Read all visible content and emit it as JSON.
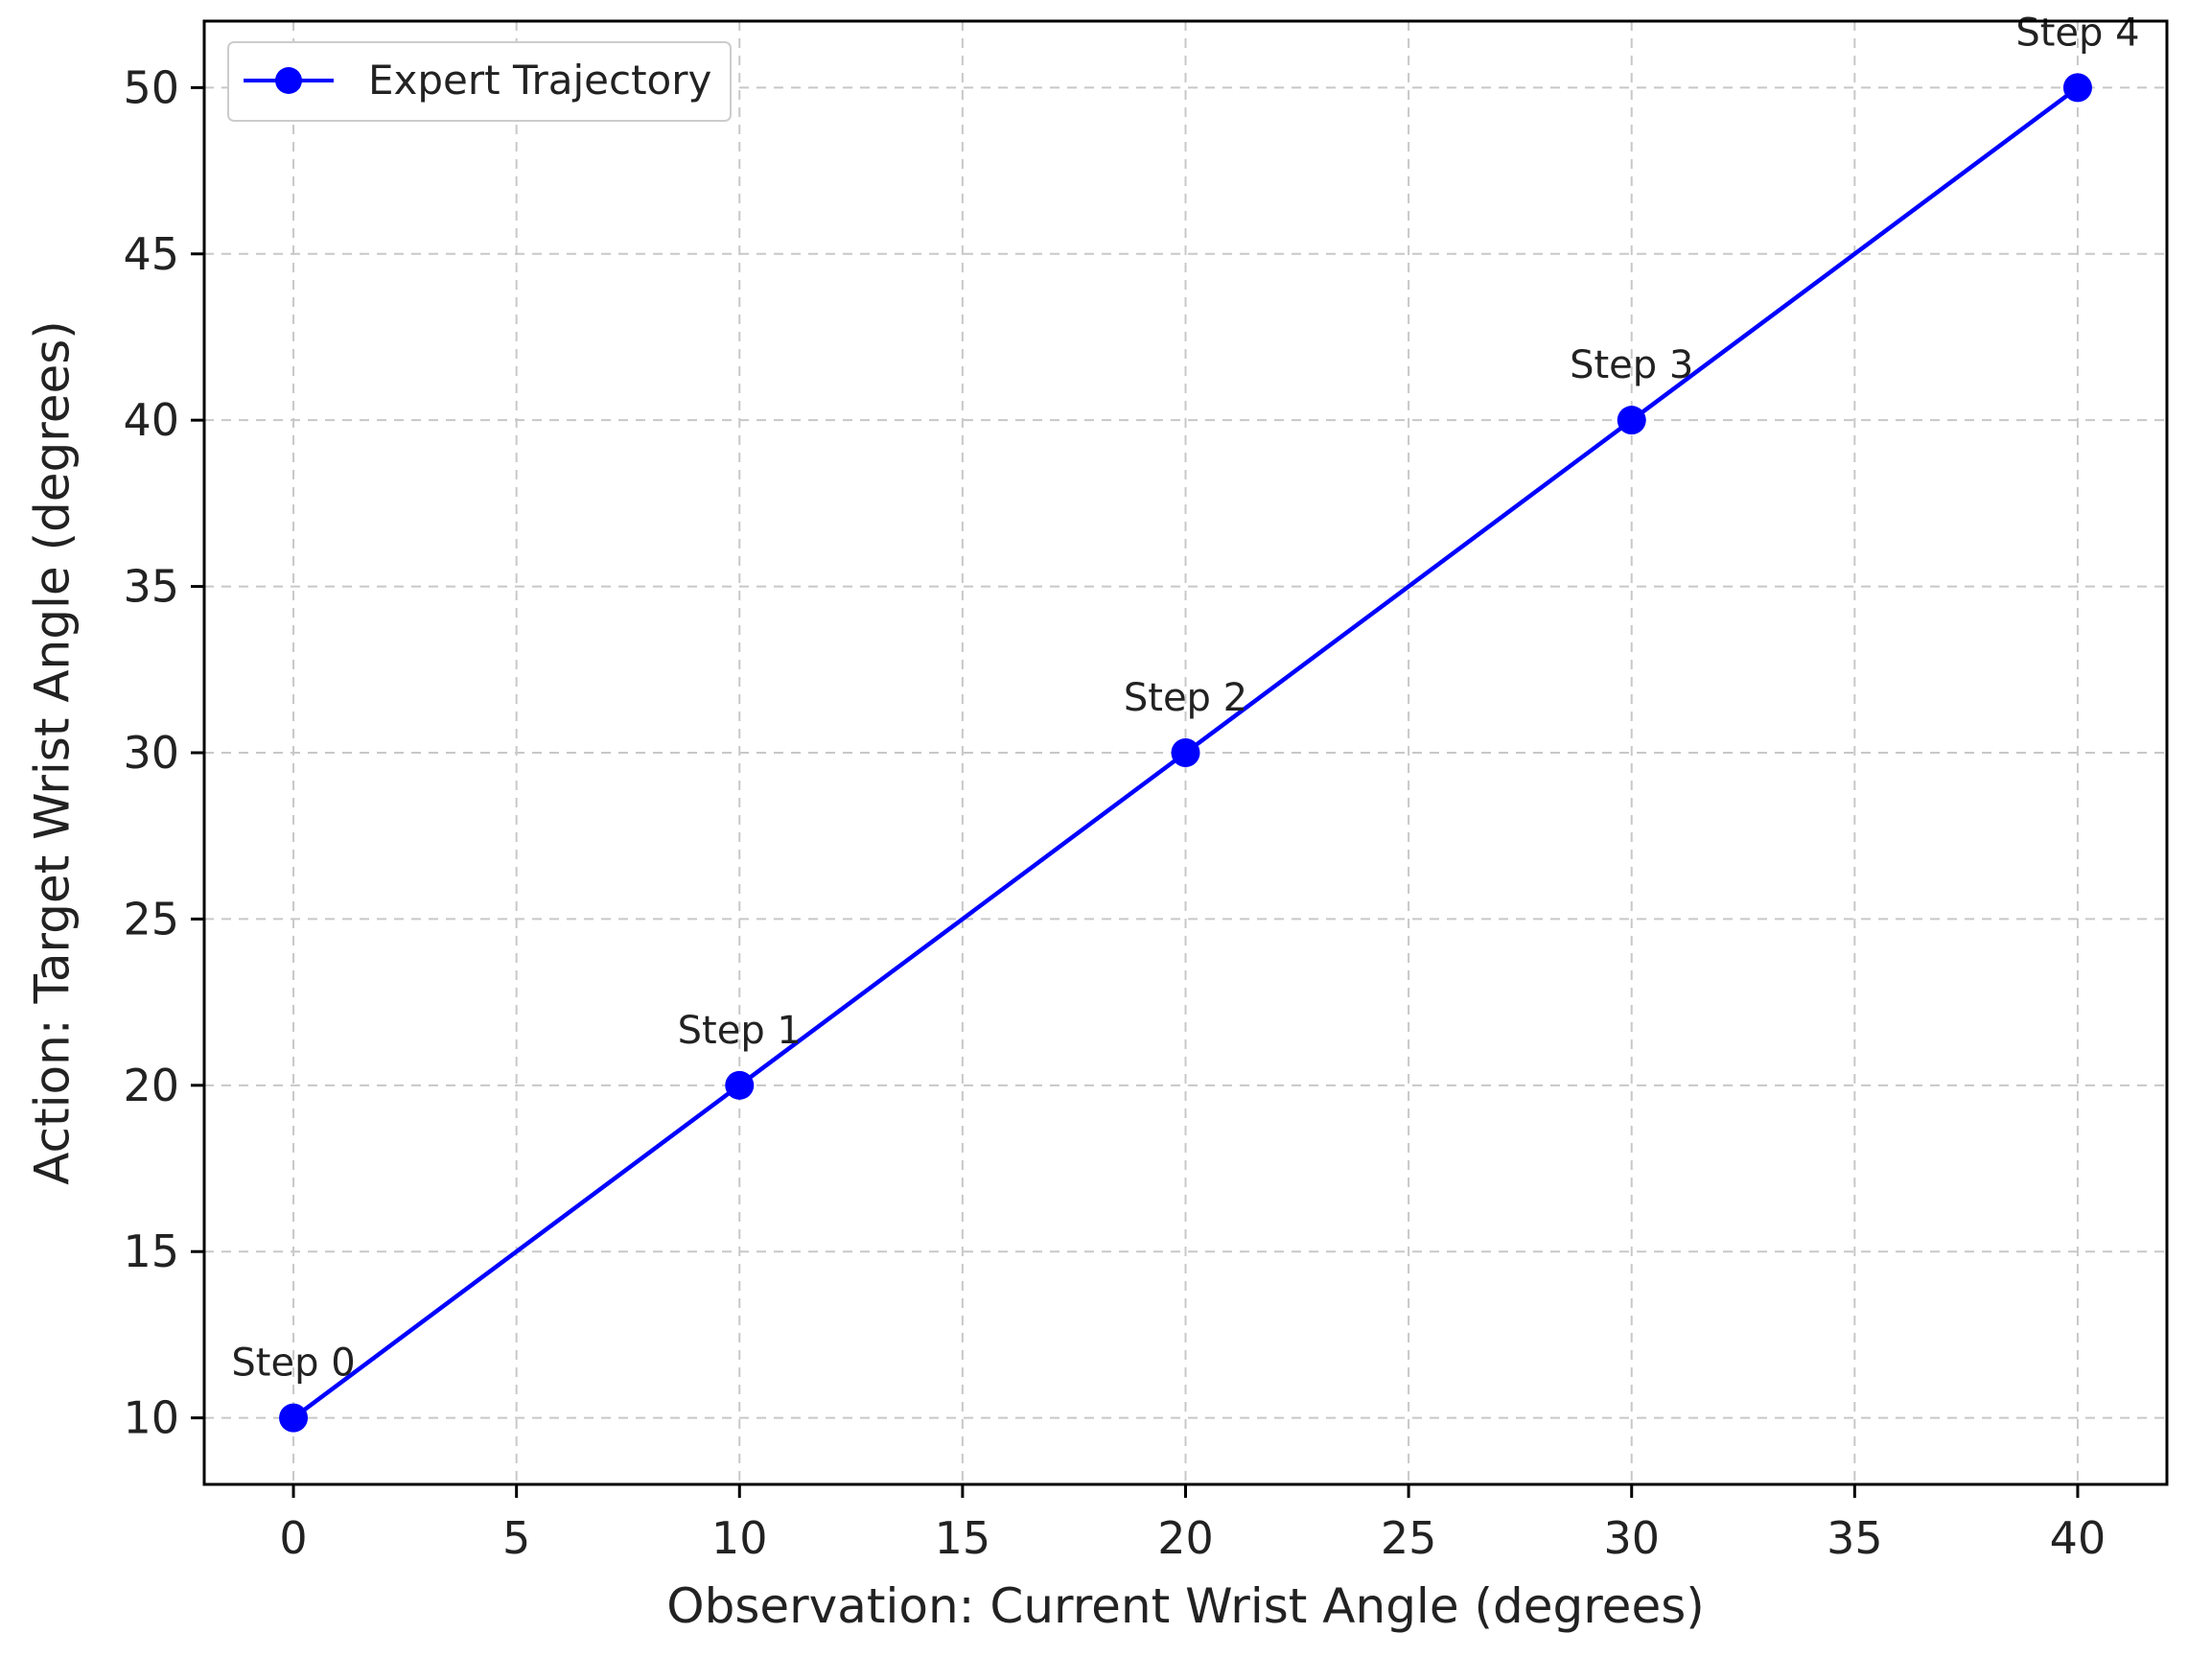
{
  "chart_data": {
    "type": "line",
    "title": "",
    "xlabel": "Observation: Current Wrist Angle (degrees)",
    "ylabel": "Action: Target Wrist Angle (degrees)",
    "xlim": [
      -2,
      42
    ],
    "ylim": [
      8,
      52
    ],
    "xticks": [
      0,
      5,
      10,
      15,
      20,
      25,
      30,
      35,
      40
    ],
    "yticks": [
      10,
      15,
      20,
      25,
      30,
      35,
      40,
      45,
      50
    ],
    "grid": true,
    "legend_position": "top-left",
    "series": [
      {
        "name": "Expert Trajectory",
        "color": "#0000ff",
        "marker": "circle",
        "x": [
          0,
          10,
          20,
          30,
          40
        ],
        "y": [
          10,
          20,
          30,
          40,
          50
        ],
        "point_labels": [
          "Step 0",
          "Step 1",
          "Step 2",
          "Step 3",
          "Step 4"
        ]
      }
    ]
  }
}
